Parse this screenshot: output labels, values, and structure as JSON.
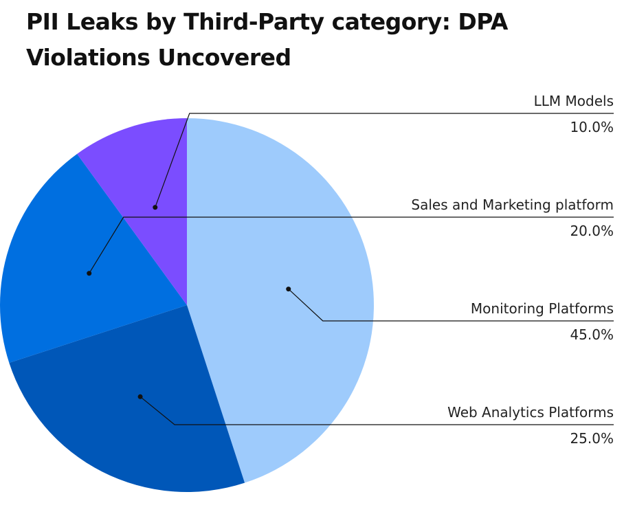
{
  "chart_data": {
    "type": "pie",
    "title": "PII Leaks by Third-Party category: DPA Violations Uncovered",
    "categories": [
      "Monitoring Platforms",
      "Web Analytics Platforms",
      "Sales and Marketing platform",
      "LLM Models"
    ],
    "values": [
      45,
      25,
      20,
      10
    ],
    "value_labels": [
      "45.0%",
      "25.0%",
      "20.0%",
      "10.0%"
    ],
    "colors": [
      "#9ecbfc",
      "#0057b8",
      "#006fe0",
      "#7b4dff"
    ]
  }
}
